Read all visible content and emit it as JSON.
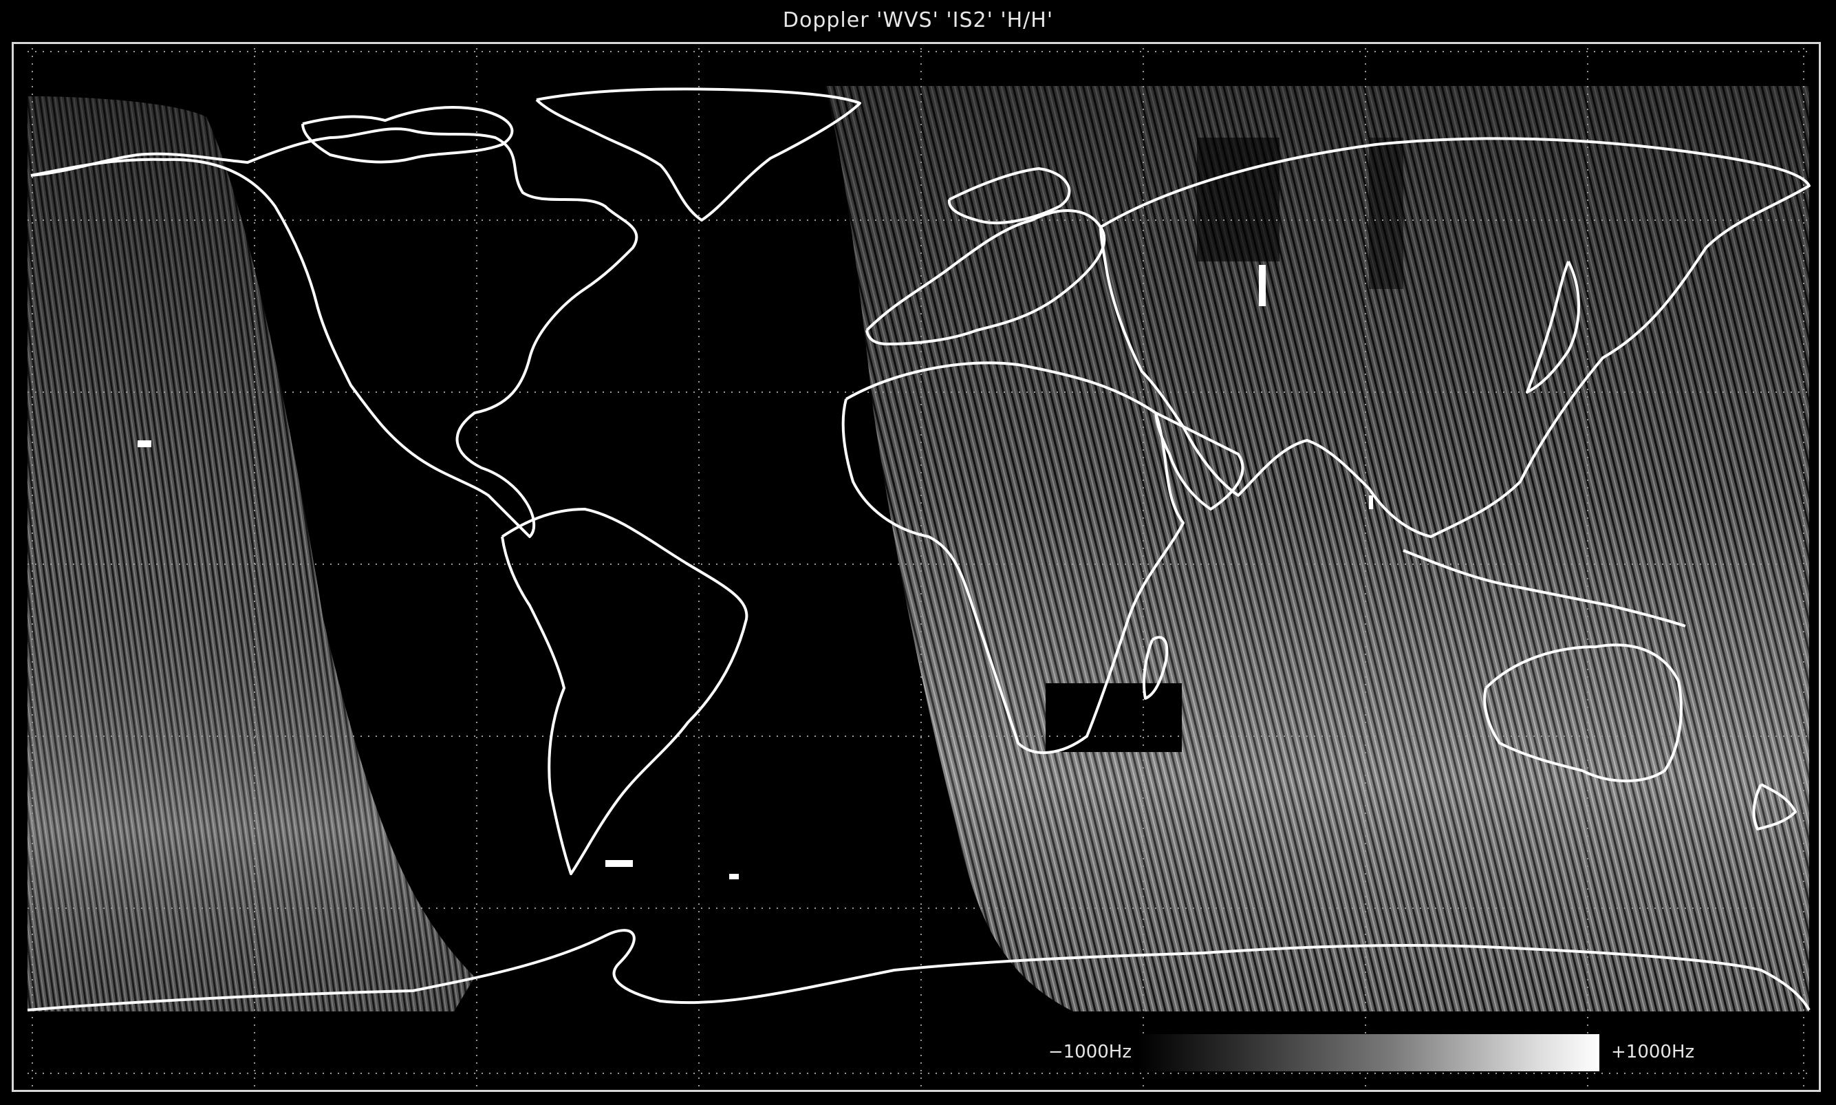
{
  "title": "Doppler 'WVS' 'IS2' 'H/H'",
  "colorbar": {
    "min_label": "−1000Hz",
    "max_label": "+1000Hz"
  },
  "colors": {
    "background": "#000000",
    "coastline": "#ffffff",
    "grid": "#9a9a9a",
    "frame": "#d8d8d8"
  },
  "map": {
    "projection": "equirectangular",
    "grid": "dotted",
    "coverage": "Doppler swath strips over ocean and land, data gap over the Americas and Atlantic"
  }
}
